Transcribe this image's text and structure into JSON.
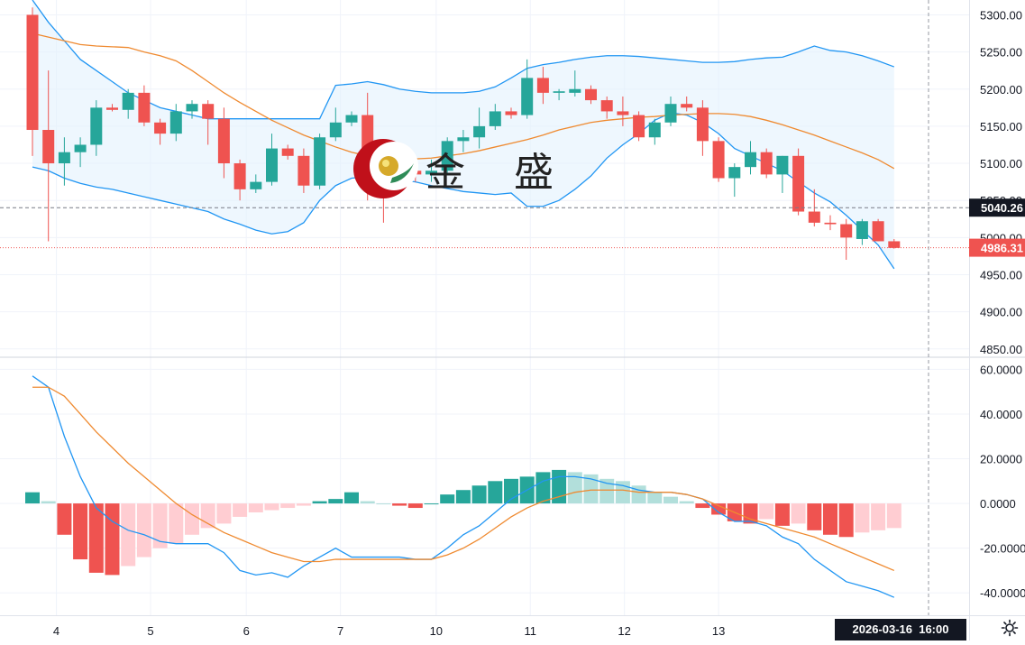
{
  "watermark": {
    "text": "金 盛"
  },
  "current_time_label": "2026-03-16  16:00",
  "colors": {
    "up": "#26a69a",
    "down": "#ef5350",
    "band": "#2196f3",
    "band_fill": "#e3f2fd",
    "mid": "#ef8a30",
    "macd": "#2196f3",
    "signal": "#ef8a30",
    "hist_up_strong": "#26a69a",
    "hist_up_weak": "#b2dfdb",
    "hist_dn_strong": "#ef5350",
    "hist_dn_weak": "#ffcdd2"
  },
  "chart_data": [
    {
      "type": "candlestick",
      "title": "",
      "y_ticks": [
        "5300.00",
        "5250.00",
        "5200.00",
        "5150.00",
        "5100.00",
        "5050.00",
        "5000.00",
        "4950.00",
        "4900.00",
        "4850.00"
      ],
      "ylim": [
        4840,
        5320
      ],
      "x_ticks": [
        {
          "label": "4",
          "i": 1.5
        },
        {
          "label": "5",
          "i": 7.4
        },
        {
          "label": "6",
          "i": 13.4
        },
        {
          "label": "7",
          "i": 19.3
        },
        {
          "label": "10",
          "i": 25.3
        },
        {
          "label": "11",
          "i": 31.2
        },
        {
          "label": "12",
          "i": 37.1
        },
        {
          "label": "13",
          "i": 43.0
        }
      ],
      "price_labels": [
        {
          "value": 5040.26,
          "text": "5040.26",
          "style": "dark"
        },
        {
          "value": 4986.31,
          "text": "4986.31",
          "style": "red"
        }
      ],
      "ohlc": [
        [
          5300,
          5310,
          5110,
          5145
        ],
        [
          5145,
          5225,
          4995,
          5100
        ],
        [
          5100,
          5135,
          5070,
          5115
        ],
        [
          5115,
          5135,
          5095,
          5125
        ],
        [
          5125,
          5185,
          5110,
          5175
        ],
        [
          5175,
          5180,
          5170,
          5172
        ],
        [
          5172,
          5200,
          5160,
          5195
        ],
        [
          5195,
          5205,
          5150,
          5155
        ],
        [
          5155,
          5160,
          5125,
          5140
        ],
        [
          5140,
          5180,
          5130,
          5170
        ],
        [
          5170,
          5185,
          5160,
          5180
        ],
        [
          5180,
          5185,
          5125,
          5160
        ],
        [
          5160,
          5175,
          5080,
          5100
        ],
        [
          5100,
          5105,
          5050,
          5065
        ],
        [
          5065,
          5085,
          5060,
          5075
        ],
        [
          5075,
          5140,
          5070,
          5120
        ],
        [
          5120,
          5125,
          5105,
          5110
        ],
        [
          5110,
          5120,
          5060,
          5070
        ],
        [
          5070,
          5140,
          5065,
          5135
        ],
        [
          5135,
          5175,
          5130,
          5155
        ],
        [
          5155,
          5170,
          5150,
          5165
        ],
        [
          5165,
          5195,
          5050,
          5090
        ],
        [
          5090,
          5105,
          5020,
          5080
        ],
        [
          5080,
          5100,
          5065,
          5090
        ],
        [
          5090,
          5100,
          5075,
          5085
        ],
        [
          5085,
          5105,
          5075,
          5090
        ],
        [
          5090,
          5135,
          5085,
          5130
        ],
        [
          5130,
          5145,
          5115,
          5135
        ],
        [
          5135,
          5175,
          5120,
          5150
        ],
        [
          5150,
          5180,
          5145,
          5170
        ],
        [
          5170,
          5175,
          5160,
          5165
        ],
        [
          5165,
          5240,
          5160,
          5215
        ],
        [
          5215,
          5230,
          5180,
          5195
        ],
        [
          5195,
          5200,
          5185,
          5197
        ],
        [
          5195,
          5225,
          5190,
          5200
        ],
        [
          5200,
          5205,
          5180,
          5185
        ],
        [
          5185,
          5190,
          5160,
          5170
        ],
        [
          5170,
          5190,
          5150,
          5165
        ],
        [
          5165,
          5170,
          5130,
          5135
        ],
        [
          5135,
          5160,
          5125,
          5155
        ],
        [
          5155,
          5190,
          5150,
          5180
        ],
        [
          5180,
          5190,
          5170,
          5175
        ],
        [
          5175,
          5185,
          5110,
          5130
        ],
        [
          5130,
          5135,
          5075,
          5080
        ],
        [
          5080,
          5100,
          5055,
          5095
        ],
        [
          5095,
          5130,
          5085,
          5115
        ],
        [
          5115,
          5120,
          5080,
          5085
        ],
        [
          5085,
          5110,
          5060,
          5110
        ],
        [
          5110,
          5120,
          5030,
          5035
        ],
        [
          5035,
          5065,
          5015,
          5020
        ],
        [
          5020,
          5030,
          5010,
          5018
        ],
        [
          5018,
          5025,
          4970,
          5000
        ],
        [
          4998,
          5025,
          4990,
          5022
        ],
        [
          5022,
          5025,
          4995,
          4995
        ],
        [
          4995,
          4998,
          4985,
          4986
        ]
      ],
      "upper_band": [
        5320,
        5290,
        5265,
        5240,
        5225,
        5210,
        5195,
        5185,
        5175,
        5170,
        5165,
        5160,
        5160,
        5160,
        5160,
        5160,
        5160,
        5160,
        5160,
        5205,
        5207,
        5210,
        5206,
        5200,
        5197,
        5195,
        5195,
        5195,
        5197,
        5203,
        5215,
        5228,
        5233,
        5236,
        5240,
        5243,
        5245,
        5245,
        5244,
        5242,
        5240,
        5238,
        5236,
        5236,
        5237,
        5240,
        5242,
        5243,
        5250,
        5258,
        5252,
        5250,
        5245,
        5238,
        5230
      ],
      "middle_band": [
        5275,
        5270,
        5265,
        5260,
        5258,
        5257,
        5256,
        5250,
        5245,
        5238,
        5225,
        5210,
        5195,
        5182,
        5170,
        5158,
        5148,
        5138,
        5130,
        5122,
        5115,
        5110,
        5108,
        5107,
        5106,
        5107,
        5110,
        5113,
        5117,
        5122,
        5127,
        5132,
        5138,
        5145,
        5150,
        5155,
        5158,
        5160,
        5162,
        5163,
        5165,
        5166,
        5167,
        5167,
        5166,
        5163,
        5158,
        5152,
        5145,
        5138,
        5130,
        5122,
        5114,
        5105,
        5093
      ],
      "lower_band": [
        5095,
        5090,
        5080,
        5073,
        5068,
        5065,
        5060,
        5055,
        5050,
        5045,
        5040,
        5035,
        5025,
        5018,
        5010,
        5005,
        5008,
        5020,
        5050,
        5070,
        5080,
        5082,
        5080,
        5078,
        5075,
        5070,
        5066,
        5062,
        5060,
        5058,
        5060,
        5042,
        5042,
        5050,
        5065,
        5083,
        5107,
        5125,
        5140,
        5158,
        5168,
        5165,
        5155,
        5140,
        5120,
        5110,
        5100,
        5090,
        5075,
        5060,
        5048,
        5030,
        5010,
        4990,
        4958
      ]
    },
    {
      "type": "macd",
      "title": "",
      "y_ticks": [
        "60.0000",
        "40.0000",
        "20.0000",
        "0.0000",
        "-20.0000",
        "-40.0000"
      ],
      "ylim": [
        -50,
        65
      ],
      "macd": [
        57,
        52,
        30,
        12,
        -2,
        -8,
        -12,
        -14,
        -17,
        -18,
        -18,
        -18,
        -22,
        -30,
        -32,
        -31,
        -33,
        -28,
        -24,
        -20,
        -24,
        -24,
        -24,
        -24,
        -25,
        -25,
        -20,
        -14,
        -10,
        -4,
        2,
        6,
        10,
        12,
        12,
        11,
        9,
        8,
        6,
        5,
        5,
        4,
        2,
        -4,
        -8,
        -8,
        -10,
        -15,
        -18,
        -25,
        -30,
        -35,
        -37,
        -39,
        -42
      ],
      "signal": [
        52,
        52,
        48,
        40,
        32,
        25,
        18,
        12,
        6,
        0,
        -5,
        -9,
        -13,
        -16,
        -19,
        -22,
        -24,
        -26,
        -26,
        -25,
        -25,
        -25,
        -25,
        -25,
        -25,
        -25,
        -23,
        -20,
        -16,
        -11,
        -6,
        -2,
        1,
        3,
        5,
        6,
        6,
        6,
        5,
        5,
        5,
        4,
        2,
        -1,
        -4,
        -7,
        -9,
        -11,
        -13,
        -15,
        -18,
        -21,
        -24,
        -27,
        -30
      ],
      "histogram": [
        5,
        1,
        -14,
        -25,
        -31,
        -32,
        -28,
        -24,
        -20,
        -18,
        -14,
        -11,
        -9,
        -6,
        -4,
        -3,
        -2,
        -1,
        1,
        2,
        5,
        1,
        0,
        -1,
        -2,
        0,
        4,
        6,
        8,
        10,
        11,
        12,
        14,
        15,
        14,
        13,
        11,
        10,
        8,
        5,
        3,
        1,
        -2,
        -5,
        -8,
        -9,
        -7,
        -10,
        -9,
        -12,
        -14,
        -15,
        -13,
        -12,
        -11
      ]
    }
  ]
}
